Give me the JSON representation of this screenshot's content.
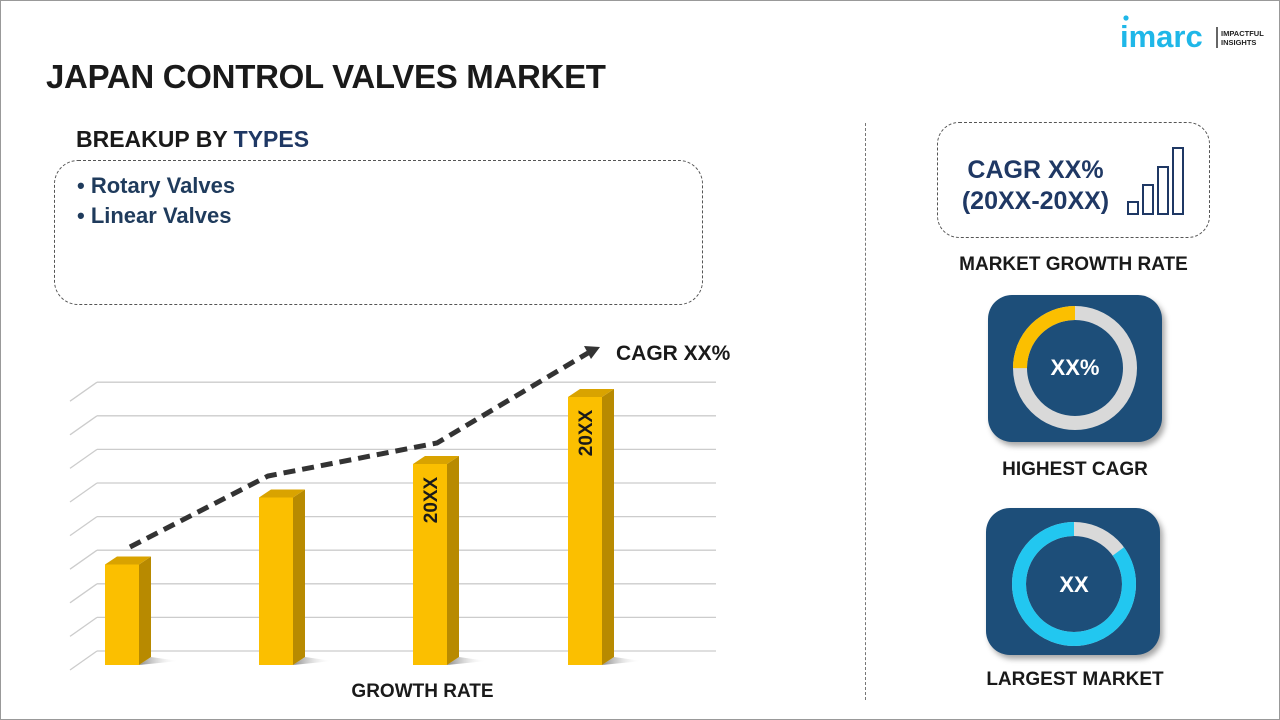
{
  "logo": {
    "brand": "imarc",
    "tagline_1": "IMPACTFUL",
    "tagline_2": "INSIGHTS"
  },
  "title": "JAPAN CONTROL VALVES MARKET",
  "breakup": {
    "prefix": "BREAKUP BY ",
    "highlight": "TYPES",
    "items": [
      "• Rotary Valves",
      "• Linear Valves"
    ]
  },
  "growth": {
    "cagr_line1": "CAGR XX%",
    "cagr_line2": "(20XX-20XX)",
    "label": "MARKET GROWTH RATE"
  },
  "highest": {
    "value": "XX%",
    "label": "HIGHEST CAGR",
    "fill_fraction": 0.25
  },
  "largest": {
    "value": "XX",
    "label": "LARGEST MARKET",
    "fill_fraction": 0.85
  },
  "colors": {
    "navy": "#1f3864",
    "card": "#1d4e79",
    "bar": "#fbbf00",
    "donut_yellow": "#fbbf00",
    "donut_cyan": "#22c7f0",
    "donut_gray": "#d9d9d9"
  },
  "chart_data": {
    "type": "bar",
    "categories": [
      "",
      "",
      "",
      ""
    ],
    "values": [
      3,
      5,
      6,
      8
    ],
    "bar_labels": [
      "",
      "",
      "20XX",
      "20XX"
    ],
    "trend_annotation": "CAGR XX%",
    "xlabel": "GROWTH RATE",
    "ylabel": "",
    "ylim": [
      0,
      9
    ],
    "grid": true
  }
}
